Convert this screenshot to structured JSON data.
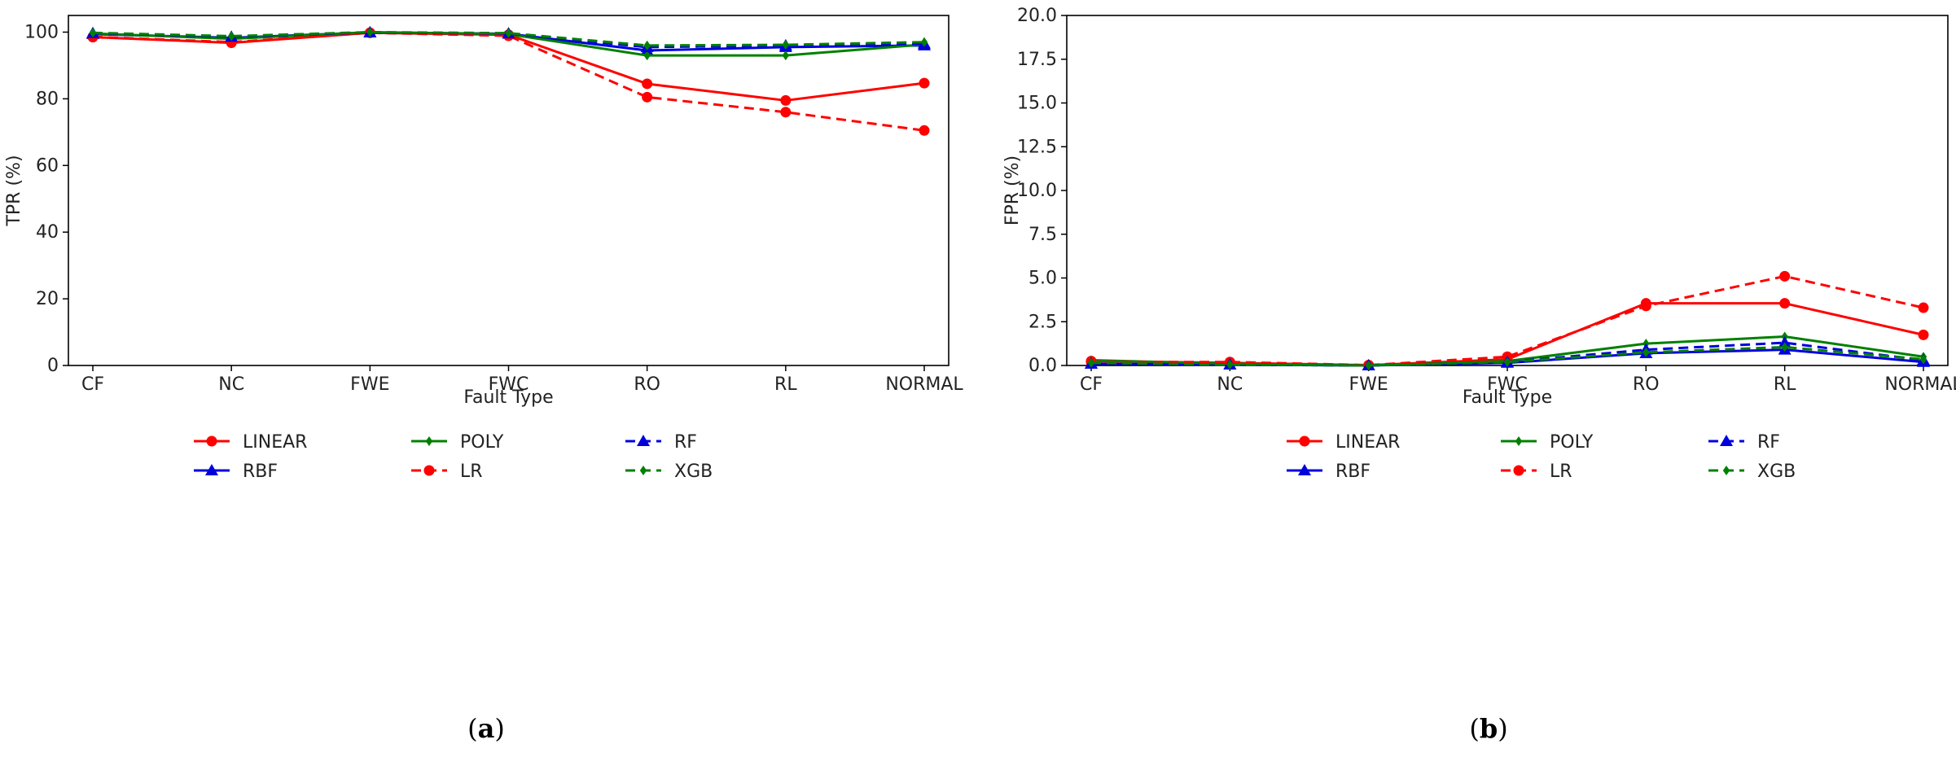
{
  "chart_data": [
    {
      "id": "a",
      "type": "line",
      "caption_letter": "a",
      "xlabel": "Fault Type",
      "ylabel": "TPR (%)",
      "categories": [
        "CF",
        "NC",
        "FWE",
        "FWC",
        "RO",
        "RL",
        "NORMAL"
      ],
      "ylim": [
        0,
        105
      ],
      "yticks": [
        0,
        20,
        40,
        60,
        80,
        100
      ],
      "ytick_labels": [
        "0",
        "20",
        "40",
        "60",
        "80",
        "100"
      ],
      "series": [
        {
          "name": "LINEAR",
          "color": "#ff0000",
          "dash": "solid",
          "marker": "circle",
          "values": [
            98.5,
            96.8,
            99.8,
            99.2,
            84.5,
            79.5,
            84.7
          ]
        },
        {
          "name": "RBF",
          "color": "#0000dd",
          "dash": "solid",
          "marker": "triangle",
          "values": [
            99.4,
            98.3,
            99.9,
            99.5,
            94.5,
            95.5,
            96.0
          ]
        },
        {
          "name": "POLY",
          "color": "#008000",
          "dash": "solid",
          "marker": "diamond",
          "values": [
            99.6,
            98.0,
            100.0,
            99.4,
            93.0,
            93.0,
            96.3
          ]
        },
        {
          "name": "LR",
          "color": "#ff0000",
          "dash": "dashed",
          "marker": "circle",
          "values": [
            98.6,
            97.0,
            99.8,
            98.9,
            80.5,
            76.0,
            70.5
          ]
        },
        {
          "name": "RF",
          "color": "#0000dd",
          "dash": "dashed",
          "marker": "triangle",
          "values": [
            99.7,
            98.6,
            99.9,
            99.6,
            95.5,
            96.0,
            96.5
          ]
        },
        {
          "name": "XGB",
          "color": "#008000",
          "dash": "dashed",
          "marker": "diamond",
          "values": [
            99.8,
            98.8,
            100.0,
            99.7,
            96.0,
            96.2,
            97.0
          ]
        }
      ]
    },
    {
      "id": "b",
      "type": "line",
      "caption_letter": "b",
      "xlabel": "Fault Type",
      "ylabel": "FPR (%)",
      "categories": [
        "CF",
        "NC",
        "FWE",
        "FWC",
        "RO",
        "RL",
        "NORMAL"
      ],
      "ylim": [
        0,
        20
      ],
      "yticks": [
        0,
        2.5,
        5,
        7.5,
        10,
        12.5,
        15,
        17.5,
        20
      ],
      "ytick_labels": [
        "0.0",
        "2.5",
        "5.0",
        "7.5",
        "10.0",
        "12.5",
        "15.0",
        "17.5",
        "20.0"
      ],
      "series": [
        {
          "name": "LINEAR",
          "color": "#ff0000",
          "dash": "solid",
          "marker": "circle",
          "values": [
            0.25,
            0.15,
            0.02,
            0.35,
            3.55,
            3.55,
            1.75
          ]
        },
        {
          "name": "RBF",
          "color": "#0000dd",
          "dash": "solid",
          "marker": "triangle",
          "values": [
            0.1,
            0.05,
            0.0,
            0.15,
            0.7,
            0.9,
            0.2
          ]
        },
        {
          "name": "POLY",
          "color": "#008000",
          "dash": "solid",
          "marker": "diamond",
          "values": [
            0.3,
            0.1,
            0.0,
            0.25,
            1.25,
            1.65,
            0.5
          ]
        },
        {
          "name": "LR",
          "color": "#ff0000",
          "dash": "dashed",
          "marker": "circle",
          "values": [
            0.2,
            0.2,
            0.02,
            0.5,
            3.4,
            5.1,
            3.3
          ]
        },
        {
          "name": "RF",
          "color": "#0000dd",
          "dash": "dashed",
          "marker": "triangle",
          "values": [
            0.1,
            0.05,
            0.0,
            0.2,
            0.9,
            1.3,
            0.3
          ]
        },
        {
          "name": "XGB",
          "color": "#008000",
          "dash": "dashed",
          "marker": "diamond",
          "values": [
            0.15,
            0.05,
            0.0,
            0.2,
            0.75,
            1.05,
            0.35
          ]
        }
      ]
    }
  ]
}
